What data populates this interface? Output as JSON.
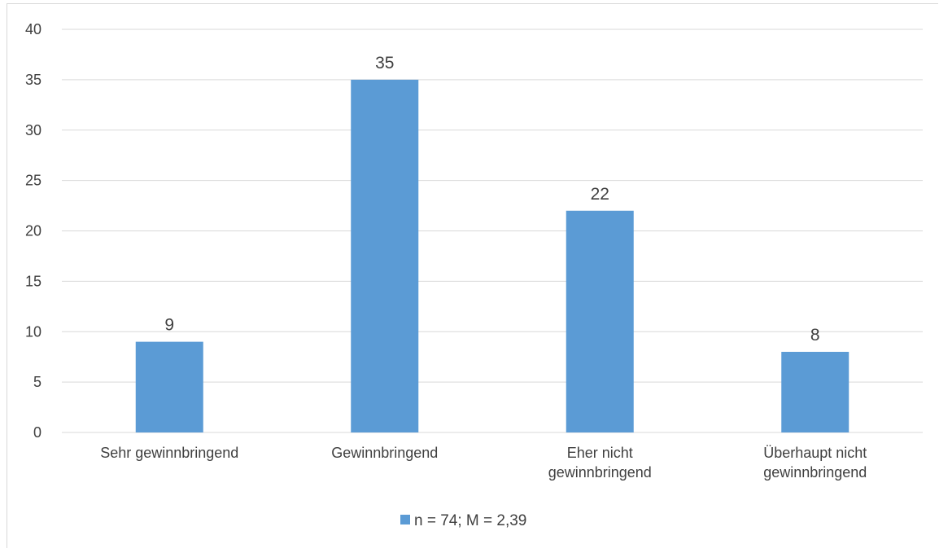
{
  "chart_data": {
    "type": "bar",
    "title": "",
    "xlabel": "",
    "ylabel": "",
    "categories": [
      "Sehr gewinnbringend",
      "Gewinnbringend",
      "Eher nicht gewinnbringend",
      "Überhaupt nicht gewinnbringend"
    ],
    "category_label_lines": [
      [
        "Sehr gewinnbringend"
      ],
      [
        "Gewinnbringend"
      ],
      [
        "Eher nicht",
        "gewinnbringend"
      ],
      [
        "Überhaupt nicht",
        "gewinnbringend"
      ]
    ],
    "series": [
      {
        "name": "n = 74; M = 2,39",
        "values": [
          9,
          35,
          22,
          8
        ],
        "color": "#5b9bd5"
      }
    ],
    "ylim": [
      0,
      40
    ],
    "yticks": [
      0,
      5,
      10,
      15,
      20,
      25,
      30,
      35,
      40
    ],
    "grid": true,
    "legend_position": "bottom",
    "data_labels": true
  },
  "colors": {
    "bar": "#5b9bd5",
    "grid": "#d9d9d9",
    "text": "#404040",
    "title_fragment": "#1f6fc2"
  }
}
